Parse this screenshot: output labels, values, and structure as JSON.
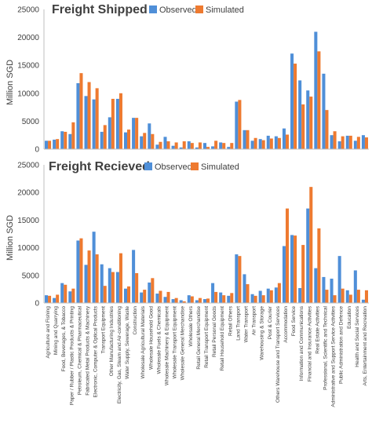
{
  "colors": {
    "observed": "#4f8fd8",
    "simulated": "#ee7a30",
    "axis": "#bfbfbf",
    "grid": "#d9d9d9"
  },
  "categories": [
    "Agriculture and Fishing",
    "Mining and Quarrying",
    "Food, Beverages, & Tobacco",
    "Paper / Rubber / Plastic Products & Printing",
    "Petroleum, Chemical & Pharmaceutical",
    "Fabricated Metal Products & Machinery",
    "Electronic, Computer & Optical Products",
    "Transport Equipment",
    "Other Manufacturing Industries",
    "Electricity, Gas, Steam and Air-conditioning",
    "Water Supply, Sewerage, Waste",
    "Construction",
    "Wholesale Agricultural Materials",
    "Wholesale Household Good",
    "Wholesale Fuels & Chemicals",
    "Wholesale Machinery & Equipment",
    "Wholesale Transport Equipment",
    "Wholesale General Merchandise",
    "Wholesale Others",
    "Retail General Merchandise",
    "Retail Transport Equipment",
    "Retail Personal Goods",
    "Retail Household Equipment",
    "Retail Others",
    "Land Transport",
    "Water Transport",
    "Air Transport",
    "Warehousing & Storage",
    "Post & Courier",
    "Others Warehouse and Transport Services",
    "Accommodation",
    "Food Service",
    "Information and Communications",
    "Financial and Insurance Activities",
    "Real Estate Activities",
    "Professional, Scientific and Technical",
    "Administrative and Support Service Activities",
    "Public Administration and Defence",
    "Education",
    "Health and Social Services",
    "Arts, Entertainment and Recreation"
  ],
  "chart_data": [
    {
      "type": "bar",
      "title": "Freight Shipped",
      "ylabel": "Million SGD",
      "ylim": [
        0,
        25000
      ],
      "yticks": [
        "0",
        "5000",
        "10000",
        "15000",
        "20000",
        "25000"
      ],
      "legend": "top",
      "series": [
        {
          "name": "Observed",
          "values": [
            1500,
            1700,
            3200,
            2700,
            11800,
            9500,
            8900,
            3100,
            5700,
            9000,
            3000,
            5600,
            2300,
            4600,
            800,
            2200,
            600,
            300,
            1400,
            300,
            1100,
            500,
            1200,
            400,
            8500,
            3400,
            1500,
            1800,
            2400,
            2300,
            3700,
            17100,
            12300,
            10500,
            21000,
            13500,
            2500,
            1400,
            2400,
            1500,
            2500
          ]
        },
        {
          "name": "Simulated",
          "values": [
            1500,
            1800,
            3100,
            4800,
            13600,
            12000,
            10900,
            4300,
            9000,
            10000,
            3500,
            5600,
            2900,
            2700,
            1300,
            1400,
            1200,
            1400,
            1100,
            1200,
            400,
            1500,
            1100,
            1100,
            8800,
            3400,
            2000,
            1600,
            1900,
            2000,
            2600,
            15300,
            8000,
            9400,
            17500,
            7000,
            3200,
            2300,
            2400,
            2200,
            2100
          ]
        }
      ]
    },
    {
      "type": "bar",
      "title": "Freight Recieved",
      "ylabel": "Million SGD",
      "ylim": [
        0,
        25000
      ],
      "yticks": [
        "0",
        "5000",
        "10000",
        "15000",
        "20000",
        "25000"
      ],
      "legend": "top",
      "series": [
        {
          "name": "Observed",
          "values": [
            1400,
            900,
            3600,
            2100,
            11300,
            6900,
            12900,
            7000,
            6300,
            5600,
            2600,
            9600,
            1900,
            3700,
            1700,
            1100,
            700,
            500,
            1400,
            500,
            700,
            3600,
            1900,
            1300,
            8800,
            5200,
            1600,
            2200,
            2600,
            2800,
            10300,
            12300,
            2700,
            17100,
            6300,
            4700,
            4400,
            8500,
            2300,
            5900,
            600
          ]
        },
        {
          "name": "Simulated",
          "values": [
            1300,
            1500,
            3300,
            2600,
            11700,
            9500,
            8800,
            3100,
            5600,
            9000,
            3000,
            5400,
            2400,
            4500,
            2200,
            2000,
            900,
            300,
            1200,
            900,
            800,
            2000,
            1400,
            1800,
            8500,
            3400,
            1300,
            1400,
            2300,
            3600,
            17100,
            12200,
            10500,
            21000,
            13500,
            2400,
            1400,
            2600,
            1500,
            2400,
            2300
          ]
        }
      ]
    }
  ]
}
